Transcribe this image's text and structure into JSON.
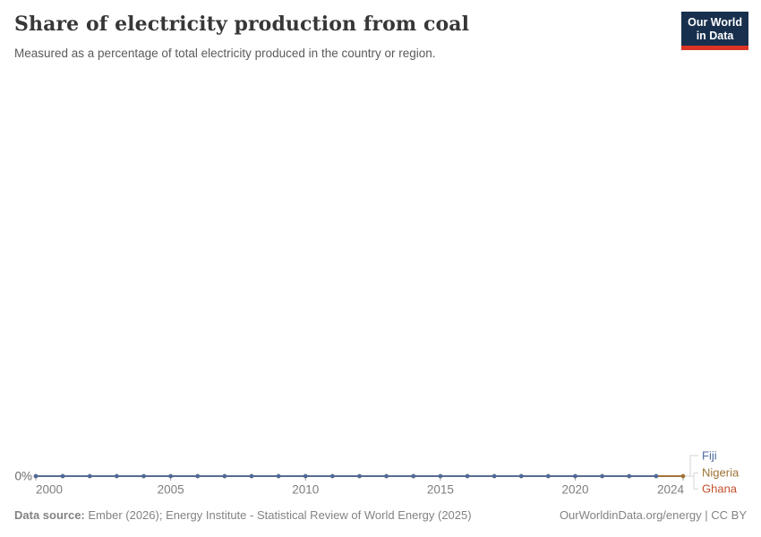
{
  "header": {
    "title": "Share of electricity production from coal",
    "subtitle": "Measured as a percentage of total electricity produced in the country or region."
  },
  "logo": {
    "line1": "Our World",
    "line2": "in Data",
    "bg_color": "#18304E",
    "bar_color": "#DC3425"
  },
  "footer": {
    "source_label": "Data source:",
    "source_text": " Ember (2026); Energy Institute - Statistical Review of World Energy (2025)",
    "right_text": "OurWorldinData.org/energy | CC BY"
  },
  "chart_data": {
    "type": "line",
    "title": "Share of electricity production from coal",
    "xlabel": "",
    "ylabel": "",
    "y_axis_label": "0%",
    "unit": "%",
    "x_range": [
      2000,
      2024
    ],
    "ylim": [
      0,
      100
    ],
    "x_ticks": [
      2000,
      2005,
      2010,
      2015,
      2020,
      2024
    ],
    "grid": "off",
    "legend_position": "right-of-line-end",
    "colors": {
      "axis_text": "#7e7e7e",
      "y_text": "#696969",
      "tick": "#a3a3a3",
      "connector": "#dcdcdc"
    },
    "series": [
      {
        "name": "Fiji",
        "color": "#4C6A9C",
        "x_start": 2000,
        "x_end": 2023,
        "values": [
          0,
          0,
          0,
          0,
          0,
          0,
          0,
          0,
          0,
          0,
          0,
          0,
          0,
          0,
          0,
          0,
          0,
          0,
          0,
          0,
          0,
          0,
          0,
          0
        ]
      },
      {
        "name": "Nigeria",
        "color": "#9D7335",
        "x_start": 2000,
        "x_end": 2024,
        "values": [
          0,
          0,
          0,
          0,
          0,
          0,
          0,
          0,
          0,
          0,
          0,
          0,
          0,
          0,
          0,
          0,
          0,
          0,
          0,
          0,
          0,
          0,
          0,
          0,
          0
        ]
      },
      {
        "name": "Ghana",
        "color": "#C4512C",
        "x_start": 2000,
        "x_end": 2024,
        "values": [
          0,
          0,
          0,
          0,
          0,
          0,
          0,
          0,
          0,
          0,
          0,
          0,
          0,
          0,
          0,
          0,
          0,
          0,
          0,
          0,
          0,
          0,
          0,
          0,
          0
        ]
      }
    ]
  }
}
